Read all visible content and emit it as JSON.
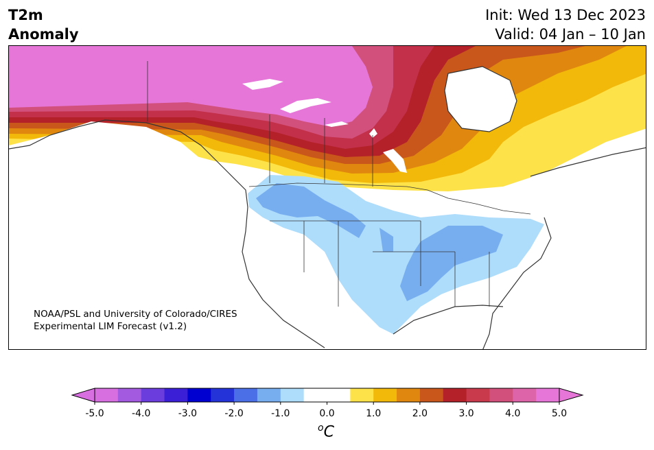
{
  "title": {
    "left_line1": "T2m",
    "left_line2": "Anomaly",
    "init": "Init: Wed 13 Dec 2023",
    "valid": "Valid: 04 Jan – 10 Jan"
  },
  "credit": {
    "line1": "NOAA/PSL and University of Colorado/CIRES",
    "line2": "Experimental LIM Forecast (v1.2)"
  },
  "colorbar": {
    "unit_base": "C",
    "unit_sup": "o",
    "ticks": [
      "-5.0",
      "-4.0",
      "-3.0",
      "-2.0",
      "-1.0",
      "0.0",
      "1.0",
      "2.0",
      "3.0",
      "4.0",
      "5.0"
    ],
    "colors": [
      "#d76fe0",
      "#a35ae0",
      "#6a3ddc",
      "#3a1fd6",
      "#0000d0",
      "#2433d8",
      "#4a6fe6",
      "#77aef0",
      "#aedcfb",
      "#ffffff",
      "#ffffff",
      "#fde24a",
      "#f2b90a",
      "#e0870f",
      "#c9561a",
      "#b42128",
      "#c83a4c",
      "#d2507c",
      "#dd64a8",
      "#e677d8"
    ],
    "min_color": "#d76fe0",
    "max_color": "#e677d8"
  },
  "map": {
    "colors": {
      "pink": "#e677d8",
      "magenta": "#d2507c",
      "crimson": "#c3304a",
      "red": "#b42128",
      "rust": "#c9561a",
      "orange": "#e0870f",
      "amber": "#f2b90a",
      "yellow": "#fde24a",
      "lightblue": "#aedcfb",
      "midblue": "#77aef0",
      "lake": "#ffffff",
      "border": "#333333"
    }
  }
}
